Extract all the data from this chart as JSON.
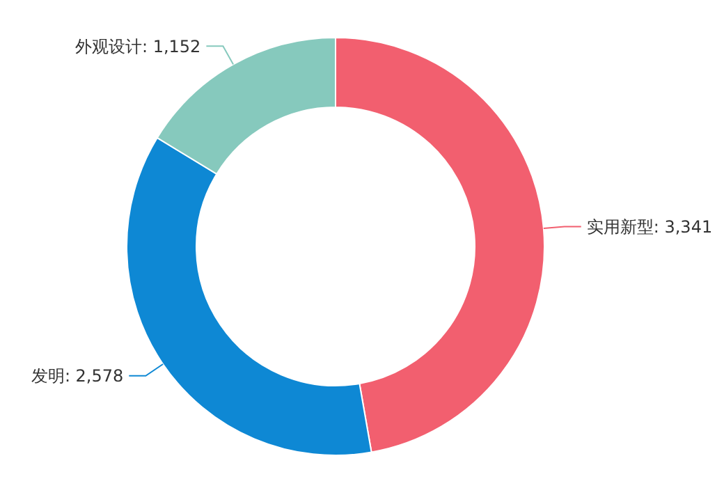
{
  "chart_data": {
    "type": "donut",
    "categories": [
      "实用新型",
      "发明",
      "外观设计"
    ],
    "values": [
      3341,
      2578,
      1152
    ],
    "value_labels": [
      ": 3,341",
      ": 2,578",
      ": 1,152"
    ],
    "colors": [
      "#f25f6f",
      "#0e88d4",
      "#86c9bd"
    ],
    "legend": false
  }
}
